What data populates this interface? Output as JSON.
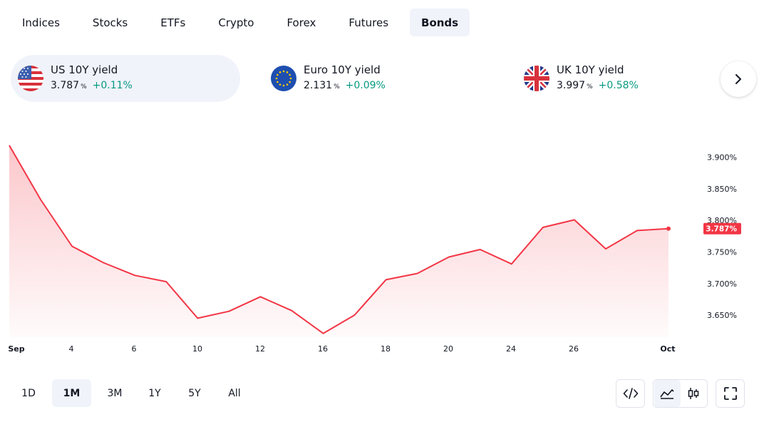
{
  "tabs": [
    {
      "label": "Indices",
      "active": false
    },
    {
      "label": "Stocks",
      "active": false
    },
    {
      "label": "ETFs",
      "active": false
    },
    {
      "label": "Crypto",
      "active": false
    },
    {
      "label": "Forex",
      "active": false
    },
    {
      "label": "Futures",
      "active": false
    },
    {
      "label": "Bonds",
      "active": true
    }
  ],
  "cards": [
    {
      "name": "US 10Y yield",
      "value": "3.787",
      "unit": "%",
      "change": "+0.11%",
      "flag": "us-flag-icon",
      "active": true
    },
    {
      "name": "Euro 10Y yield",
      "value": "2.131",
      "unit": "%",
      "change": "+0.09%",
      "flag": "eu-flag-icon",
      "active": false
    },
    {
      "name": "UK 10Y yield",
      "value": "3.997",
      "unit": "%",
      "change": "+0.58%",
      "flag": "uk-flag-icon",
      "active": false
    }
  ],
  "ranges": [
    {
      "label": "1D",
      "active": false
    },
    {
      "label": "1M",
      "active": true
    },
    {
      "label": "3M",
      "active": false
    },
    {
      "label": "1Y",
      "active": false
    },
    {
      "label": "5Y",
      "active": false
    },
    {
      "label": "All",
      "active": false
    }
  ],
  "colors": {
    "line": "#f23645",
    "positive": "#089981",
    "activeBg": "#f0f3fa"
  },
  "chart_data": {
    "type": "area",
    "x_tick_labels": [
      "Sep",
      "4",
      "6",
      "10",
      "12",
      "16",
      "18",
      "20",
      "24",
      "26",
      "Oct"
    ],
    "y_tick_labels": [
      "3.900%",
      "3.850%",
      "3.800%",
      "3.750%",
      "3.700%",
      "3.650%"
    ],
    "y_ticks": [
      3.9,
      3.85,
      3.8,
      3.75,
      3.7,
      3.65
    ],
    "ylim": [
      3.615,
      3.946
    ],
    "values": [
      3.919,
      3.833,
      3.759,
      3.733,
      3.713,
      3.703,
      3.645,
      3.656,
      3.679,
      3.657,
      3.621,
      3.65,
      3.706,
      3.716,
      3.742,
      3.754,
      3.731,
      3.789,
      3.801,
      3.755,
      3.784,
      3.787
    ],
    "last_label": "3.787%",
    "grid": false,
    "legend": "none"
  }
}
